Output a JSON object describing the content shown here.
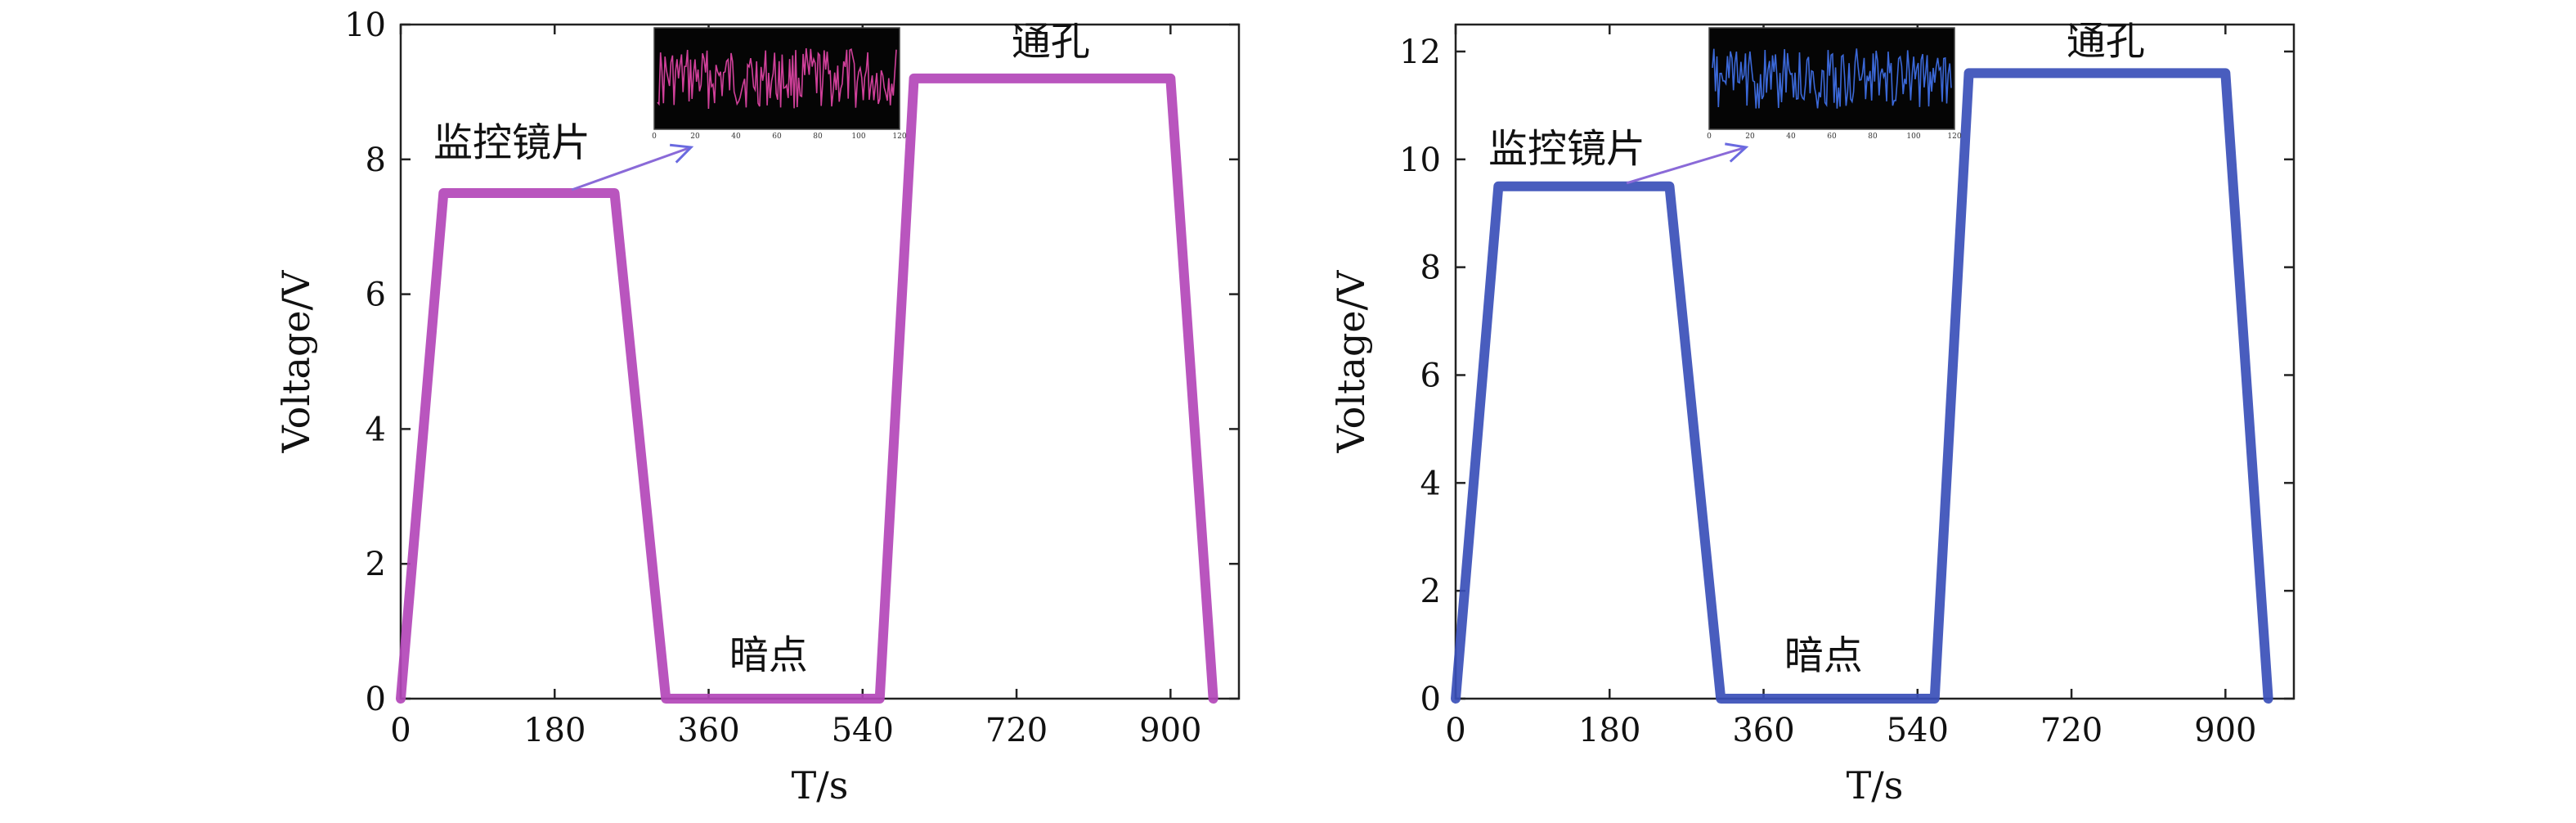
{
  "chart_data": [
    {
      "type": "line",
      "xlabel": "T/s",
      "ylabel": "Voltage/V",
      "xlim": [
        0,
        980
      ],
      "ylim": [
        0,
        10
      ],
      "xticks": [
        0,
        180,
        360,
        540,
        720,
        900
      ],
      "yticks": [
        0,
        2,
        4,
        6,
        8,
        10
      ],
      "color": "#b347b8",
      "series": [
        {
          "x": [
            0,
            50,
            250,
            310,
            560,
            600,
            900,
            950
          ],
          "y": [
            0,
            7.5,
            7.5,
            0,
            0,
            9.2,
            9.2,
            0
          ]
        }
      ],
      "annotations": [
        {
          "text": "监控镜片",
          "x": 130,
          "y": 8.05
        },
        {
          "text": "暗点",
          "x": 430,
          "y": 0.45
        },
        {
          "text": "通孔",
          "x": 760,
          "y": 9.55
        }
      ],
      "inset": {
        "color": "#d0409a",
        "xticks": [
          "0",
          "20",
          "40",
          "60",
          "80",
          "100",
          "120"
        ]
      }
    },
    {
      "type": "line",
      "xlabel": "T/s",
      "ylabel": "Voltage/V",
      "xlim": [
        0,
        980
      ],
      "ylim": [
        0,
        12.5
      ],
      "xticks": [
        0,
        180,
        360,
        540,
        720,
        900
      ],
      "yticks": [
        0,
        2,
        4,
        6,
        8,
        10,
        12
      ],
      "color": "#3a4fb8",
      "series": [
        {
          "x": [
            0,
            50,
            250,
            310,
            560,
            600,
            900,
            950
          ],
          "y": [
            0,
            9.5,
            9.5,
            0,
            0,
            11.6,
            11.6,
            0
          ]
        }
      ],
      "annotations": [
        {
          "text": "监控镜片",
          "x": 130,
          "y": 9.95
        },
        {
          "text": "暗点",
          "x": 430,
          "y": 0.55
        },
        {
          "text": "通孔",
          "x": 760,
          "y": 11.95
        }
      ],
      "inset": {
        "color": "#3b68d8",
        "xticks": [
          "0",
          "20",
          "40",
          "60",
          "80",
          "100",
          "120"
        ]
      }
    }
  ]
}
